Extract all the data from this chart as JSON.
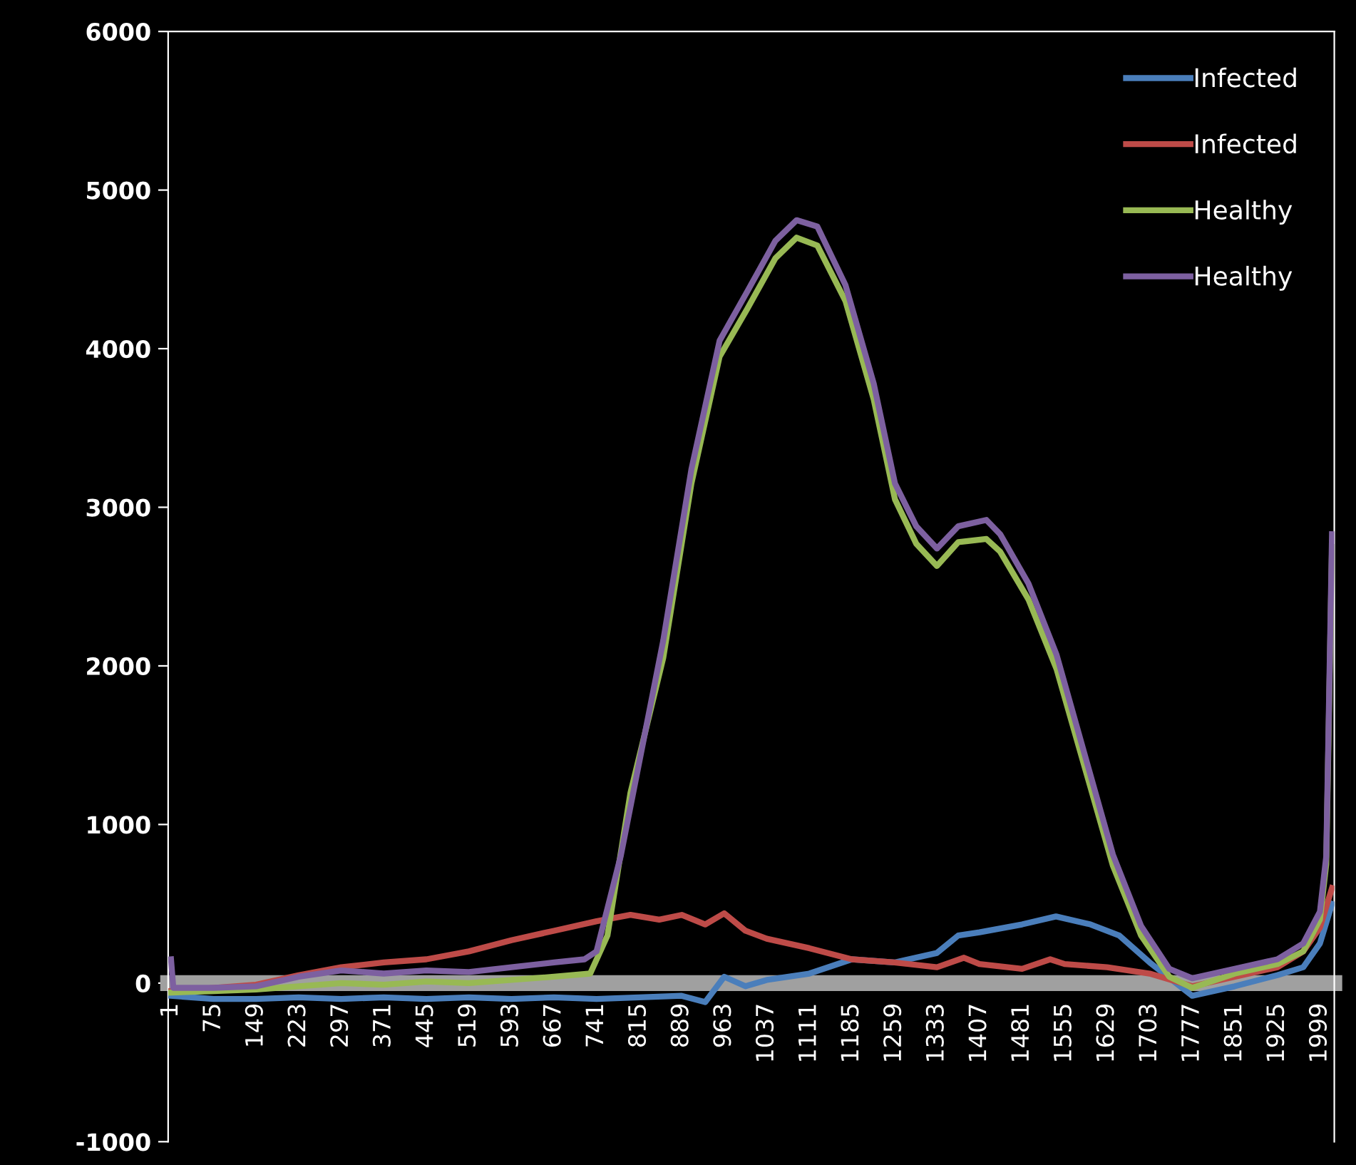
{
  "chart_data": {
    "type": "line",
    "xlim": [
      -4,
      2024
    ],
    "xticks": [
      1,
      75,
      149,
      223,
      297,
      371,
      445,
      519,
      593,
      667,
      741,
      815,
      889,
      963,
      1037,
      1111,
      1185,
      1259,
      1333,
      1407,
      1481,
      1555,
      1629,
      1703,
      1777,
      1851,
      1925,
      1999
    ],
    "ylim": [
      -1000,
      6000
    ],
    "yticks": [
      -1000,
      0,
      1000,
      2000,
      3000,
      4000,
      5000,
      6000
    ],
    "grid": false,
    "legend": "top right",
    "marker": "none",
    "line_style": "solid",
    "series": [
      {
        "name": "Infected",
        "color": "#4a7ebb",
        "x": [
          1,
          75,
          149,
          223,
          297,
          371,
          445,
          519,
          593,
          667,
          741,
          815,
          889,
          930,
          963,
          1000,
          1037,
          1111,
          1185,
          1259,
          1333,
          1370,
          1407,
          1481,
          1540,
          1600,
          1650,
          1703,
          1777,
          1851,
          1925,
          1970,
          1999,
          2020
        ],
        "values": [
          -80,
          -100,
          -100,
          -90,
          -100,
          -90,
          -100,
          -90,
          -100,
          -90,
          -100,
          -90,
          -80,
          -120,
          40,
          -20,
          20,
          60,
          150,
          130,
          190,
          300,
          320,
          370,
          420,
          370,
          300,
          130,
          -80,
          -20,
          50,
          100,
          250,
          500
        ]
      },
      {
        "name": "Infected",
        "color": "#be4b48",
        "x": [
          1,
          75,
          149,
          223,
          297,
          371,
          445,
          519,
          593,
          667,
          741,
          800,
          850,
          889,
          930,
          963,
          1000,
          1037,
          1111,
          1185,
          1259,
          1333,
          1380,
          1407,
          1481,
          1530,
          1555,
          1629,
          1703,
          1777,
          1851,
          1925,
          1970,
          1999,
          2020
        ],
        "values": [
          -50,
          -30,
          -10,
          50,
          100,
          130,
          150,
          200,
          270,
          330,
          390,
          430,
          400,
          430,
          370,
          440,
          330,
          280,
          220,
          150,
          130,
          100,
          160,
          120,
          90,
          150,
          120,
          100,
          60,
          -20,
          40,
          100,
          200,
          350,
          600
        ]
      },
      {
        "name": "Healthy",
        "color": "#98b954",
        "x": [
          1,
          75,
          149,
          223,
          297,
          371,
          445,
          519,
          593,
          667,
          730,
          760,
          800,
          857,
          906,
          955,
          1003,
          1052,
          1089,
          1125,
          1174,
          1223,
          1260,
          1297,
          1333,
          1370,
          1419,
          1443,
          1492,
          1541,
          1590,
          1639,
          1688,
          1737,
          1777,
          1851,
          1925,
          1970,
          1999,
          2010,
          2020
        ],
        "values": [
          -60,
          -50,
          -40,
          -20,
          0,
          -10,
          10,
          0,
          20,
          40,
          60,
          300,
          1200,
          2050,
          3150,
          3950,
          4250,
          4570,
          4700,
          4650,
          4300,
          3680,
          3050,
          2770,
          2630,
          2780,
          2800,
          2720,
          2420,
          1980,
          1360,
          740,
          300,
          40,
          -30,
          60,
          120,
          200,
          400,
          750,
          2750
        ]
      },
      {
        "name": "Healthy",
        "color": "#7d60a0",
        "x": [
          1,
          5,
          20,
          75,
          149,
          223,
          297,
          371,
          445,
          519,
          593,
          667,
          720,
          741,
          783,
          857,
          906,
          955,
          1003,
          1052,
          1089,
          1125,
          1174,
          1223,
          1260,
          1297,
          1333,
          1370,
          1419,
          1443,
          1492,
          1541,
          1590,
          1639,
          1688,
          1737,
          1777,
          1851,
          1925,
          1970,
          1999,
          2010,
          2020
        ],
        "values": [
          150,
          -30,
          -30,
          -30,
          -20,
          40,
          80,
          60,
          80,
          70,
          100,
          130,
          150,
          200,
          800,
          2160,
          3240,
          4050,
          4360,
          4680,
          4810,
          4770,
          4400,
          3780,
          3150,
          2880,
          2740,
          2880,
          2920,
          2830,
          2520,
          2070,
          1440,
          810,
          360,
          90,
          30,
          90,
          150,
          250,
          450,
          800,
          2830
        ]
      }
    ]
  }
}
